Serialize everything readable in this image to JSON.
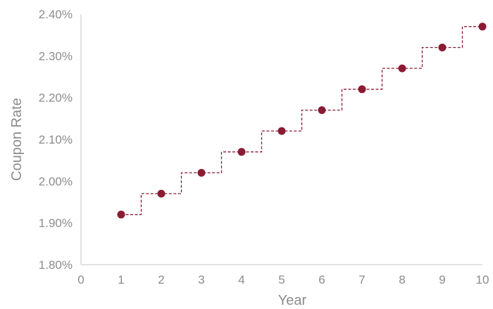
{
  "chart_data": {
    "type": "scatter",
    "xlabel": "Year",
    "ylabel": "Coupon Rate",
    "x_ticks": [
      "0",
      "1",
      "2",
      "3",
      "4",
      "5",
      "6",
      "7",
      "8",
      "9",
      "10"
    ],
    "y_ticks": [
      "1.80%",
      "1.90%",
      "2.00%",
      "2.10%",
      "2.20%",
      "2.30%",
      "2.40%"
    ],
    "xlim": [
      0,
      10
    ],
    "ylim": [
      1.8,
      2.4
    ],
    "grid": false,
    "series": [
      {
        "x": [
          1,
          2,
          3,
          4,
          5,
          6,
          7,
          8,
          9,
          10
        ],
        "values": [
          1.92,
          1.97,
          2.02,
          2.07,
          2.12,
          2.17,
          2.22,
          2.27,
          2.32,
          2.37
        ],
        "step_line": "dashed"
      }
    ],
    "colors": {
      "marker": "#8b1a33",
      "axis": "#d9d9d9",
      "text": "#8c8c8c"
    }
  }
}
